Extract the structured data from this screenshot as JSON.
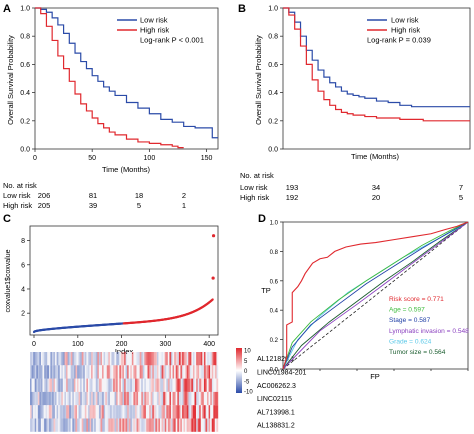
{
  "panels": {
    "A": {
      "label": "A",
      "chart_data": {
        "type": "line",
        "ylabel": "Overall Survival Probability",
        "xlabel": "Time (Months)",
        "xticks": [
          0,
          50,
          100,
          150
        ],
        "yticks": [
          "0.0",
          "0.2",
          "0.4",
          "0.6",
          "0.8",
          "1.0"
        ],
        "xlim": [
          0,
          160
        ],
        "ylim": [
          0,
          1
        ],
        "legend": "top-right",
        "legend_text": "Log-rank P < 0.001",
        "series": [
          {
            "name": "Low risk",
            "color": "#2b4ba8",
            "x": [
              0,
              5,
              10,
              15,
              20,
              25,
              30,
              35,
              40,
              45,
              50,
              55,
              60,
              65,
              70,
              80,
              90,
              100,
              110,
              120,
              130,
              140,
              150,
              155,
              160
            ],
            "y": [
              1.0,
              0.99,
              0.97,
              0.93,
              0.88,
              0.82,
              0.75,
              0.68,
              0.62,
              0.57,
              0.52,
              0.48,
              0.44,
              0.41,
              0.38,
              0.33,
              0.29,
              0.25,
              0.21,
              0.19,
              0.16,
              0.15,
              0.15,
              0.08,
              0.08
            ]
          },
          {
            "name": "High risk",
            "color": "#e0282e",
            "x": [
              0,
              5,
              10,
              15,
              20,
              25,
              30,
              35,
              40,
              45,
              50,
              55,
              60,
              65,
              70,
              80,
              90,
              100,
              110,
              120,
              125,
              130
            ],
            "y": [
              1.0,
              0.96,
              0.87,
              0.77,
              0.66,
              0.57,
              0.48,
              0.39,
              0.32,
              0.27,
              0.22,
              0.18,
              0.15,
              0.12,
              0.1,
              0.07,
              0.05,
              0.04,
              0.03,
              0.02,
              0.01,
              0.01
            ]
          }
        ]
      },
      "risk_table": {
        "title": "No. at risk",
        "rows": [
          {
            "label": "Low risk",
            "values": [
              "206",
              "81",
              "18",
              "2"
            ]
          },
          {
            "label": "High risk",
            "values": [
              "205",
              "39",
              "5",
              "1"
            ]
          }
        ]
      }
    },
    "B": {
      "label": "B",
      "chart_data": {
        "type": "line",
        "ylabel": "Overall Survival Probability",
        "xlabel": "Time (Months)",
        "xticks": [],
        "yticks": [
          "0.0",
          "0.2",
          "0.4",
          "0.6",
          "0.8",
          "1.0"
        ],
        "xlim": [
          0,
          160
        ],
        "ylim": [
          0,
          1
        ],
        "legend": "top-right",
        "legend_text": "Log-rank P = 0.039",
        "series": [
          {
            "name": "Low risk",
            "color": "#2b4ba8",
            "x": [
              0,
              5,
              10,
              15,
              20,
              25,
              30,
              35,
              40,
              45,
              50,
              55,
              60,
              65,
              70,
              80,
              90,
              100,
              110,
              120,
              160
            ],
            "y": [
              1.0,
              0.97,
              0.9,
              0.8,
              0.7,
              0.63,
              0.56,
              0.51,
              0.47,
              0.44,
              0.41,
              0.39,
              0.38,
              0.37,
              0.36,
              0.34,
              0.33,
              0.31,
              0.3,
              0.3,
              0.3
            ]
          },
          {
            "name": "High risk",
            "color": "#e0282e",
            "x": [
              0,
              5,
              10,
              15,
              20,
              25,
              30,
              35,
              40,
              45,
              50,
              55,
              60,
              70,
              80,
              90,
              100,
              110,
              120,
              160
            ],
            "y": [
              1.0,
              0.95,
              0.85,
              0.73,
              0.6,
              0.49,
              0.41,
              0.35,
              0.31,
              0.28,
              0.26,
              0.25,
              0.24,
              0.23,
              0.22,
              0.22,
              0.21,
              0.21,
              0.2,
              0.2
            ]
          }
        ]
      },
      "risk_table": {
        "title": "No. at risk",
        "rows": [
          {
            "label": "Low risk",
            "values": [
              "193",
              "34",
              "7"
            ]
          },
          {
            "label": "High risk",
            "values": [
              "192",
              "20",
              "5"
            ]
          }
        ]
      }
    },
    "C": {
      "label": "C",
      "chart_data": {
        "type": "scatter",
        "ylabel": "coxvalue1$coxvalue",
        "xlabel": "Index",
        "xticks": [
          0,
          100,
          200,
          300,
          400
        ],
        "yticks": [
          "2",
          "4",
          "6",
          "8"
        ],
        "xlim": [
          0,
          411
        ],
        "ylim": [
          0.2,
          9.2
        ],
        "low_color": "#2b4ba8",
        "high_color": "#e0282e",
        "split_index": 205,
        "n_points": 411,
        "outliers": [
          {
            "x": 410,
            "y": 8.4
          },
          {
            "x": 409,
            "y": 4.9
          }
        ]
      },
      "heatmap": {
        "genes": [
          "AL121820.1",
          "LINC01984-201",
          "AC006262.3",
          "LINC02115",
          "AL713998.1",
          "AL138831.2"
        ],
        "colorbar_ticks": [
          "10",
          "5",
          "0",
          "-5",
          "-10"
        ],
        "high_color": "#e0282e",
        "low_color": "#2b4ba8"
      }
    },
    "D": {
      "label": "D",
      "chart_data": {
        "type": "line",
        "ylabel": "TP",
        "xlabel": "FP",
        "xticks": [
          "0.0",
          "0.2",
          "0.4",
          "0.6",
          "0.8",
          "1.0"
        ],
        "yticks": [
          "0.0",
          "0.2",
          "0.4",
          "0.6",
          "0.8",
          "1.0"
        ],
        "xlim": [
          0,
          1
        ],
        "ylim": [
          0,
          1
        ],
        "legend": "bottom-right",
        "series": [
          {
            "name": "Risk score = 0.771",
            "color": "#e0282e",
            "x": [
              0,
              0.02,
              0.02,
              0.05,
              0.05,
              0.08,
              0.1,
              0.12,
              0.16,
              0.2,
              0.24,
              0.28,
              0.34,
              0.42,
              0.5,
              0.6,
              0.7,
              0.8,
              0.88,
              0.94,
              1.0
            ],
            "y": [
              0,
              0.08,
              0.3,
              0.32,
              0.52,
              0.56,
              0.6,
              0.65,
              0.72,
              0.75,
              0.76,
              0.8,
              0.83,
              0.85,
              0.86,
              0.88,
              0.9,
              0.92,
              0.95,
              0.97,
              1.0
            ]
          },
          {
            "name": "Age = 0.597",
            "color": "#3dbb3d",
            "x": [
              0,
              0.05,
              0.15,
              0.3,
              0.45,
              0.6,
              0.75,
              0.9,
              1.0
            ],
            "y": [
              0,
              0.18,
              0.32,
              0.47,
              0.6,
              0.72,
              0.84,
              0.94,
              1.0
            ]
          },
          {
            "name": "Stage = 0.587",
            "color": "#1f3fa6",
            "x": [
              0,
              0.05,
              0.15,
              0.3,
              0.45,
              0.6,
              0.75,
              0.9,
              1.0
            ],
            "y": [
              0,
              0.15,
              0.3,
              0.44,
              0.58,
              0.7,
              0.82,
              0.93,
              1.0
            ]
          },
          {
            "name": "Lymphatic invasion = 0.548",
            "color": "#8a3fbf",
            "x": [
              0,
              0.2,
              0.4,
              0.55,
              0.7,
              0.85,
              1.0
            ],
            "y": [
              0,
              0.26,
              0.44,
              0.58,
              0.72,
              0.86,
              1.0
            ]
          },
          {
            "name": "Grade = 0.624",
            "color": "#5ac8e8",
            "x": [
              0,
              0.08,
              0.2,
              0.35,
              0.5,
              0.65,
              0.8,
              0.92,
              1.0
            ],
            "y": [
              0,
              0.2,
              0.36,
              0.52,
              0.64,
              0.76,
              0.86,
              0.94,
              1.0
            ]
          },
          {
            "name": "Tumor size = 0.564",
            "color": "#1a5c2e",
            "x": [
              0,
              0.1,
              0.25,
              0.4,
              0.55,
              0.7,
              0.85,
              1.0
            ],
            "y": [
              0,
              0.16,
              0.32,
              0.46,
              0.6,
              0.73,
              0.87,
              1.0
            ]
          }
        ]
      }
    }
  }
}
